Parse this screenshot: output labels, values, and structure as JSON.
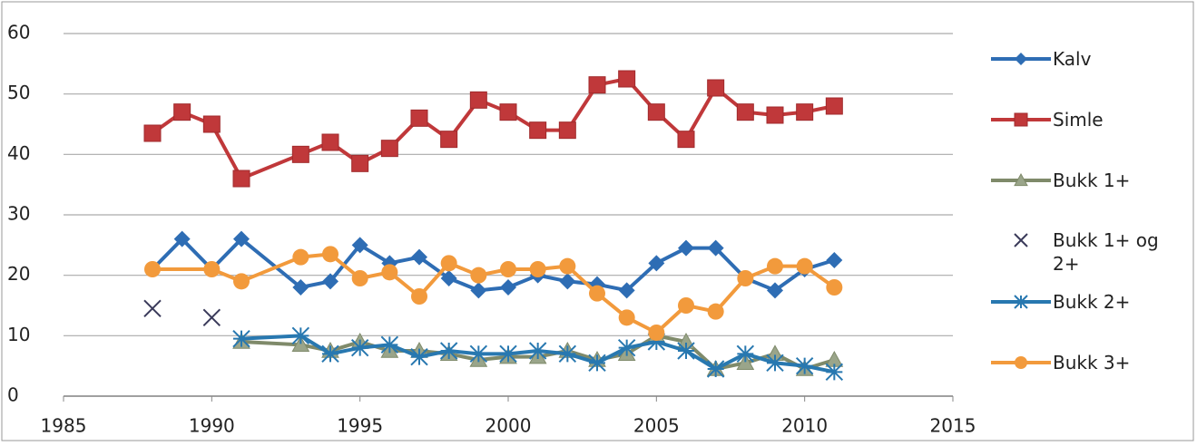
{
  "chart_data": {
    "type": "line",
    "xlim": [
      1985,
      2015
    ],
    "xticks": [
      1985,
      1990,
      1995,
      2000,
      2005,
      2010,
      2015
    ],
    "ylim": [
      0,
      60
    ],
    "yticks": [
      0,
      10,
      20,
      30,
      40,
      50,
      60
    ],
    "grid": true,
    "series": [
      {
        "name": "Kalv",
        "color": "#2e6db4",
        "marker": "diamond",
        "line": true,
        "x": [
          1988,
          1989,
          1990,
          1991,
          1993,
          1994,
          1995,
          1996,
          1997,
          1998,
          1999,
          2000,
          2001,
          2002,
          2003,
          2004,
          2005,
          2006,
          2007,
          2008,
          2009,
          2010,
          2011
        ],
        "values": [
          21,
          26,
          21,
          26,
          18,
          19,
          25,
          22,
          23,
          19.5,
          17.5,
          18,
          20,
          19,
          18.5,
          17.5,
          22,
          24.5,
          24.5,
          19.5,
          17.5,
          21,
          22.5
        ]
      },
      {
        "name": "Simle",
        "color": "#c0383a",
        "marker": "square",
        "line": true,
        "x": [
          1988,
          1989,
          1990,
          1991,
          1993,
          1994,
          1995,
          1996,
          1997,
          1998,
          1999,
          2000,
          2001,
          2002,
          2003,
          2004,
          2005,
          2006,
          2007,
          2008,
          2009,
          2010,
          2011
        ],
        "values": [
          43.5,
          47,
          45,
          36,
          40,
          42,
          38.5,
          41,
          46,
          42.5,
          49,
          47,
          44,
          44,
          51.5,
          52.5,
          47,
          42.5,
          51,
          47,
          46.5,
          47,
          48
        ]
      },
      {
        "name": "Bukk 1+",
        "color": "#7f8a6a",
        "marker": "triangle",
        "line": true,
        "x": [
          1991,
          1993,
          1994,
          1995,
          1996,
          1997,
          1998,
          1999,
          2000,
          2001,
          2002,
          2003,
          2004,
          2005,
          2006,
          2007,
          2008,
          2009,
          2010,
          2011
        ],
        "values": [
          9,
          8.5,
          7.5,
          9,
          7.5,
          7.5,
          7,
          6,
          6.5,
          6.5,
          7.5,
          6,
          7,
          10,
          9,
          4.5,
          5.5,
          7,
          4.5,
          6
        ]
      },
      {
        "name": "Bukk 1+ og 2+",
        "color": "#3a3a5a",
        "marker": "x",
        "line": false,
        "x": [
          1988,
          1990
        ],
        "values": [
          14.5,
          13
        ]
      },
      {
        "name": "Bukk 2+",
        "color": "#2878b0",
        "marker": "star",
        "line": true,
        "x": [
          1991,
          1993,
          1994,
          1995,
          1996,
          1997,
          1998,
          1999,
          2000,
          2001,
          2002,
          2003,
          2004,
          2005,
          2006,
          2007,
          2008,
          2009,
          2010,
          2011
        ],
        "values": [
          9.5,
          10,
          7,
          8,
          8.5,
          6.5,
          7.5,
          7,
          7,
          7.5,
          7,
          5.5,
          8,
          9,
          7.5,
          4.5,
          7,
          5.5,
          5,
          4
        ]
      },
      {
        "name": "Bukk 3+",
        "color": "#f29a3c",
        "marker": "circle",
        "line": true,
        "x": [
          1988,
          1990,
          1991,
          1993,
          1994,
          1995,
          1996,
          1997,
          1998,
          1999,
          2000,
          2001,
          2002,
          2003,
          2004,
          2005,
          2006,
          2007,
          2008,
          2009,
          2010,
          2011
        ],
        "values": [
          21,
          21,
          19,
          23,
          23.5,
          19.5,
          20.5,
          16.5,
          22,
          20,
          21,
          21,
          21.5,
          17,
          13,
          10.5,
          15,
          14,
          19.5,
          21.5,
          21.5,
          18
        ]
      }
    ]
  }
}
